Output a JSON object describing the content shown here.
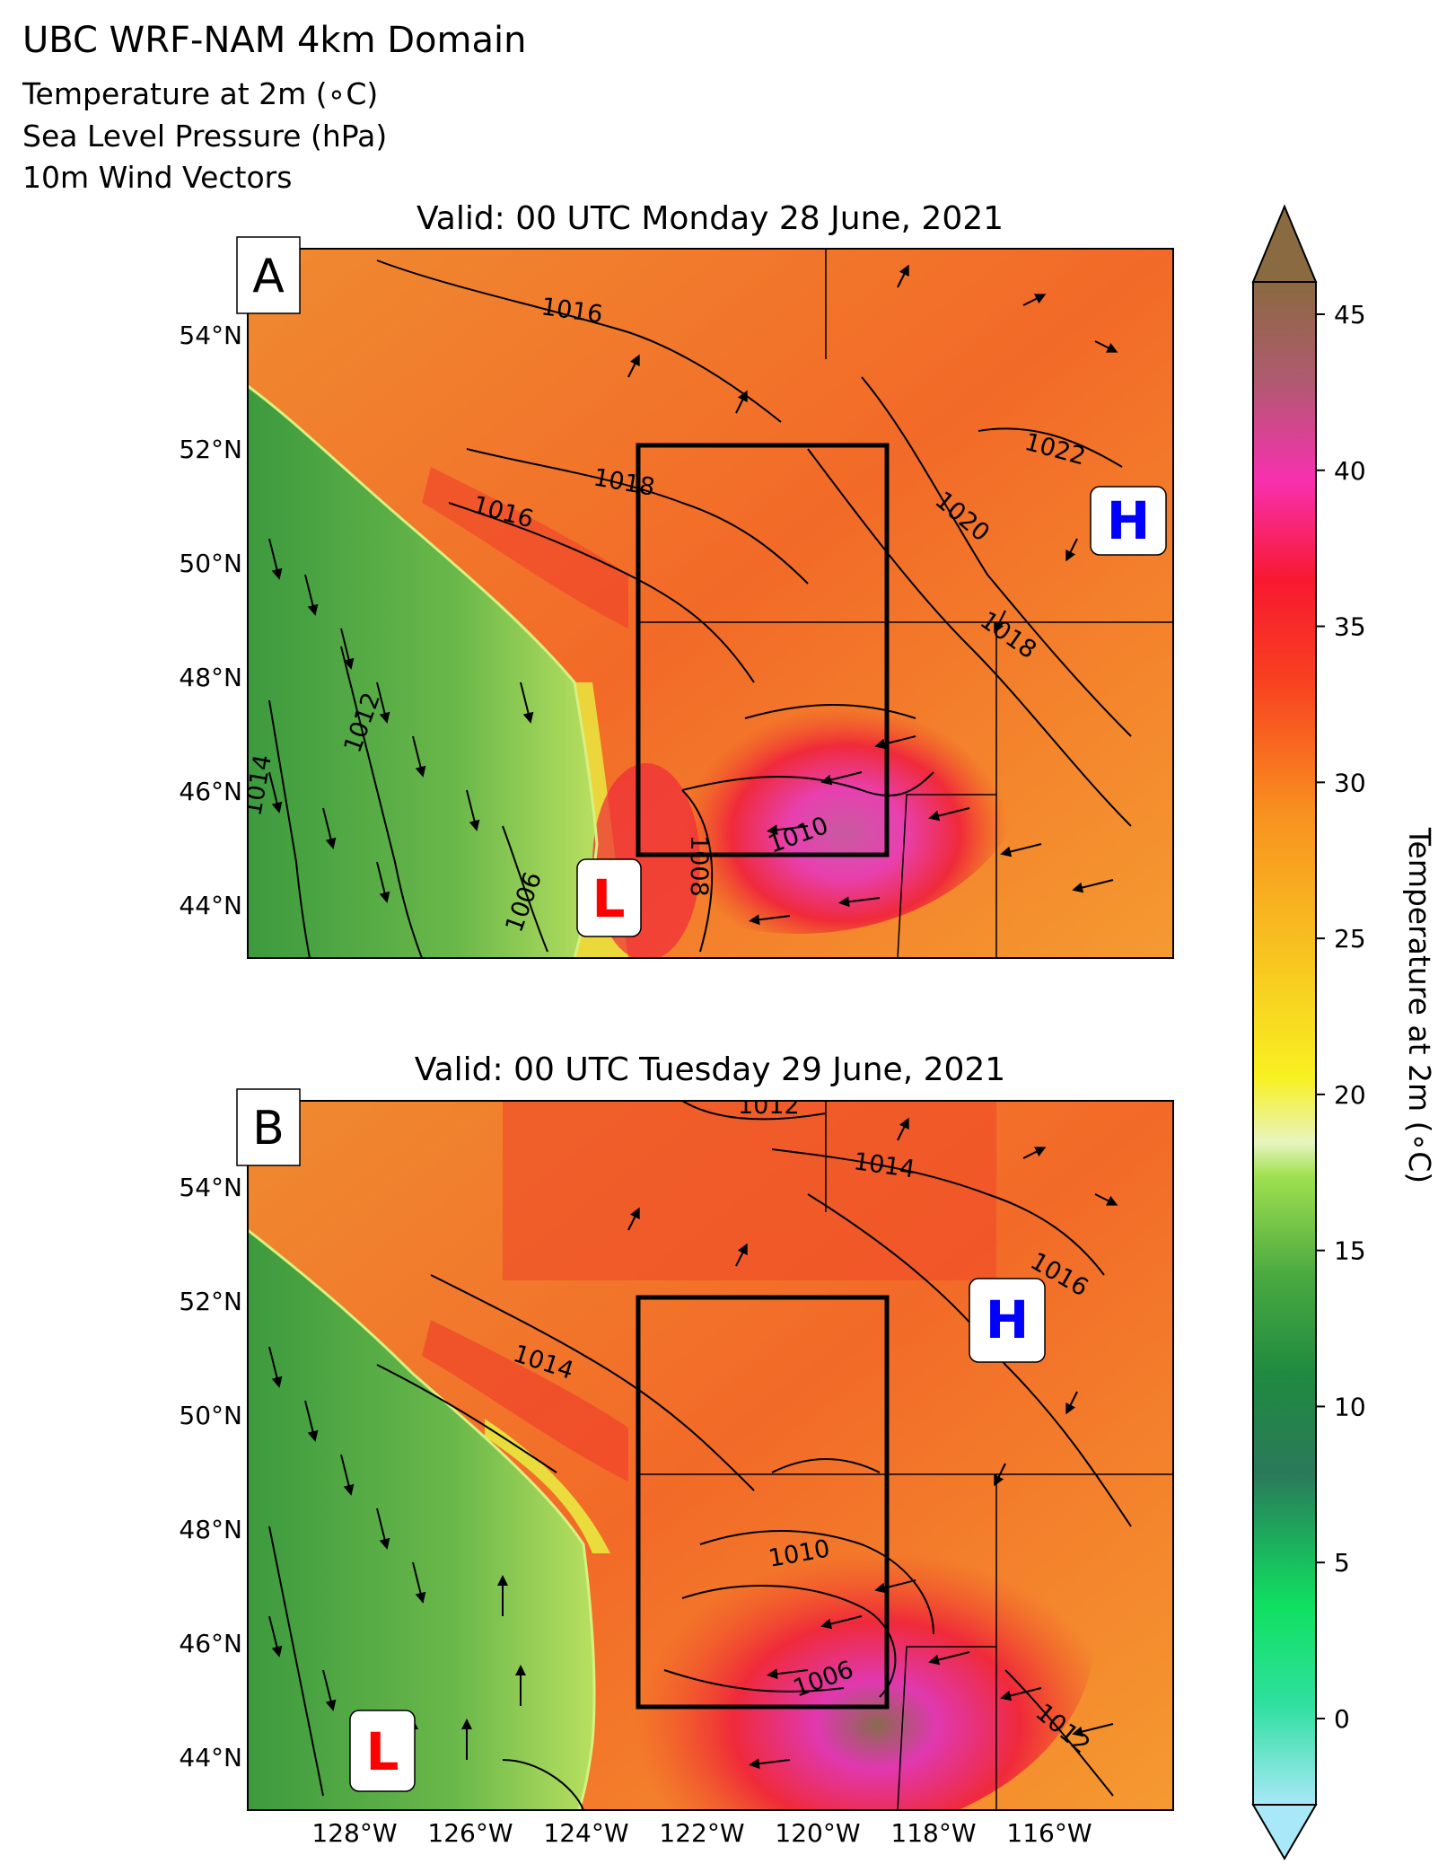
{
  "figure": {
    "title": "UBC WRF-NAM 4km Domain",
    "subtitle_lines": [
      "Temperature at 2m (∘C)",
      "Sea Level Pressure (hPa)",
      "10m Wind Vectors"
    ]
  },
  "panels": [
    {
      "label": "A",
      "valid_time": "Valid: 00 UTC Monday 28 June, 2021",
      "high_marker": "H",
      "low_marker": "L",
      "isobar_labels": [
        "1016",
        "1018",
        "1016",
        "1022",
        "1020",
        "1018",
        "1012",
        "1014",
        "1006",
        "1008",
        "1010"
      ]
    },
    {
      "label": "B",
      "valid_time": "Valid: 00 UTC Tuesday 29 June, 2021",
      "high_marker": "H",
      "low_marker": "L",
      "isobar_labels": [
        "1012",
        "1014",
        "1016",
        "1014",
        "1010",
        "1006",
        "1012"
      ]
    }
  ],
  "lat_ticks": [
    "54°N",
    "52°N",
    "50°N",
    "48°N",
    "46°N",
    "44°N"
  ],
  "lon_ticks": [
    "128°W",
    "126°W",
    "124°W",
    "122°W",
    "120°W",
    "118°W",
    "116°W"
  ],
  "colorbar": {
    "label": "Temperature at 2m (∘C)",
    "ticks": [
      "0",
      "5",
      "10",
      "15",
      "20",
      "25",
      "30",
      "35",
      "40",
      "45"
    ],
    "range": [
      0,
      45
    ],
    "stops": [
      {
        "t": 0,
        "color": "#a8e8f8"
      },
      {
        "t": 3,
        "color": "#30e0a0"
      },
      {
        "t": 6,
        "color": "#10e060"
      },
      {
        "t": 10,
        "color": "#2a7a5a"
      },
      {
        "t": 13,
        "color": "#1f8a40"
      },
      {
        "t": 16,
        "color": "#4aaa40"
      },
      {
        "t": 19,
        "color": "#a0e050"
      },
      {
        "t": 20,
        "color": "#e8f4c0"
      },
      {
        "t": 22,
        "color": "#f8f020"
      },
      {
        "t": 26,
        "color": "#f8c020"
      },
      {
        "t": 30,
        "color": "#f89020"
      },
      {
        "t": 34,
        "color": "#f84020"
      },
      {
        "t": 37,
        "color": "#f81830"
      },
      {
        "t": 40,
        "color": "#f830b0"
      },
      {
        "t": 43,
        "color": "#b05a70"
      },
      {
        "t": 46,
        "color": "#8a6a40"
      }
    ]
  },
  "colors": {
    "high_marker": "#0000ff",
    "low_marker": "#ff0000",
    "ocean_green": "#5aa848",
    "land_orange": "#f07a28",
    "hot_red": "#f02828",
    "hot_magenta": "#e03ca8"
  }
}
